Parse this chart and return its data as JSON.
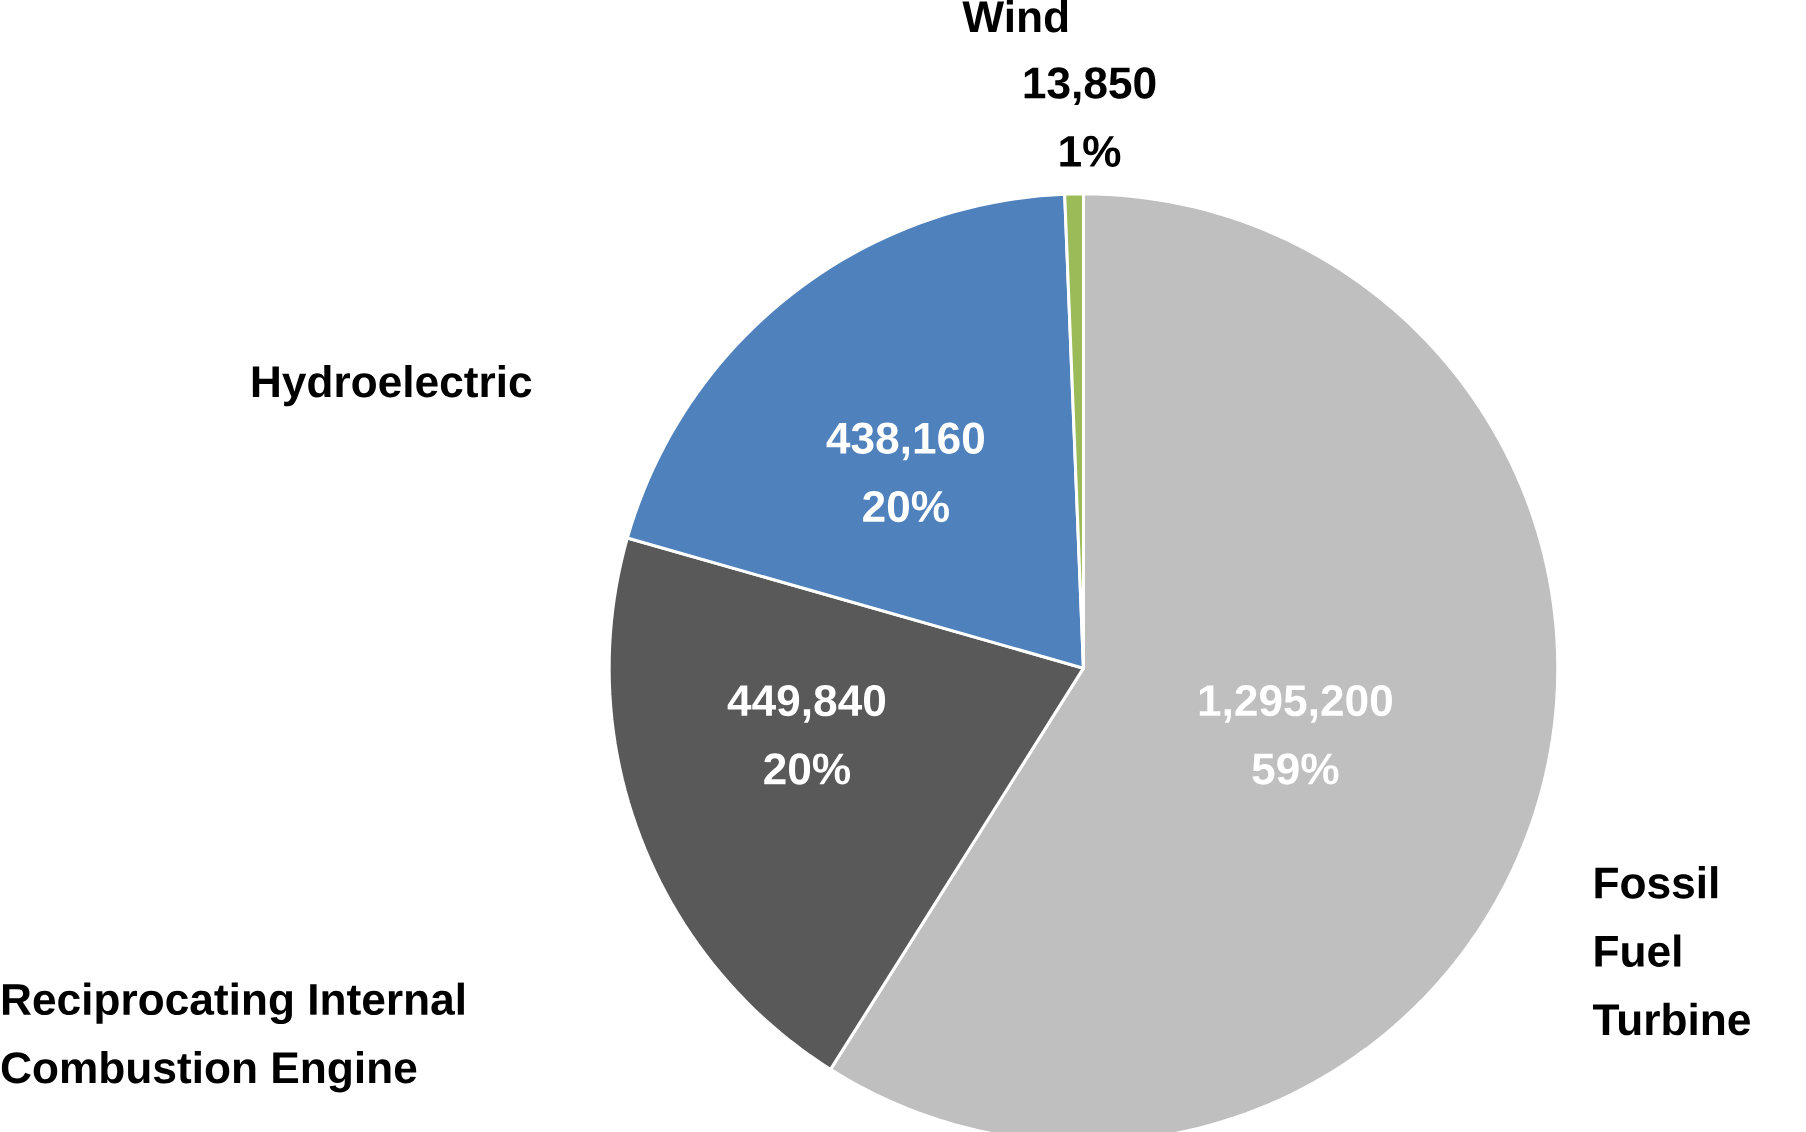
{
  "chart_data": {
    "type": "pie",
    "categories": [
      "Fossil Fuel Turbine",
      "Reciprocating Internal Combustion Engine",
      "Hydroelectric",
      "Wind"
    ],
    "values": [
      1295200,
      449840,
      438160,
      13850
    ],
    "value_labels": [
      "1,295,200 59%",
      "449,840 20%",
      "438,160 20%",
      "13,850 1%"
    ],
    "colors": [
      "#bfbfbf",
      "#595959",
      "#4f81bd",
      "#9bbb59"
    ]
  }
}
